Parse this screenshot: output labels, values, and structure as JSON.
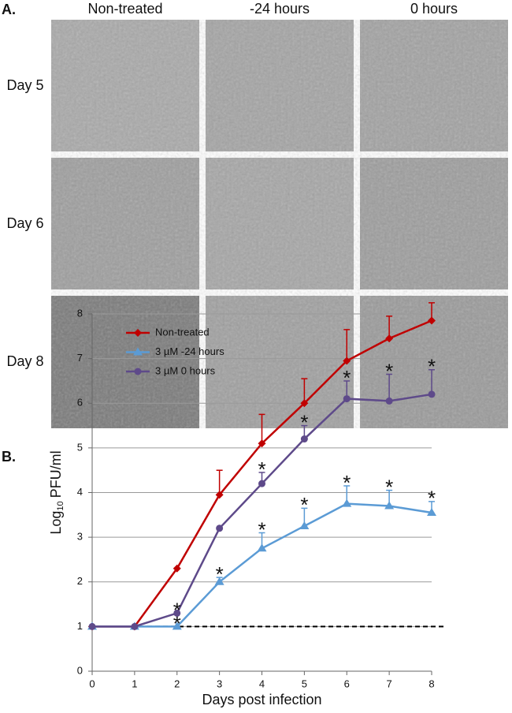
{
  "panel_a": {
    "label": "A.",
    "columns": [
      "Non-treated",
      "-24 hours",
      "0 hours"
    ],
    "rows": [
      "Day 5",
      "Day 6",
      "Day 8"
    ]
  },
  "chart_data": {
    "type": "line",
    "label": "B.",
    "x_label": "Days post infection",
    "y_label": {
      "base": "Log",
      "sub": "10",
      "rest": "PFU/ml"
    },
    "x": [
      0,
      1,
      2,
      3,
      4,
      5,
      6,
      7,
      8
    ],
    "xlim": [
      0,
      8
    ],
    "xticks": [
      0,
      1,
      2,
      3,
      4,
      5,
      6,
      7,
      8
    ],
    "ylim": [
      0,
      8
    ],
    "yticks": [
      0,
      1,
      2,
      3,
      4,
      5,
      6,
      7,
      8
    ],
    "grid": true,
    "legend": "upper left",
    "reference_line": 1,
    "annotation_text": "*",
    "series": [
      {
        "name": "Non-treated",
        "color": "#c00000",
        "marker": "diamond",
        "values": [
          1,
          1,
          2.3,
          3.95,
          5.1,
          6.0,
          6.95,
          7.45,
          7.85
        ],
        "errors": [
          0,
          0,
          0,
          0.55,
          0.65,
          0.55,
          0.7,
          0.5,
          0.4
        ]
      },
      {
        "name": "3 µM -24 hours",
        "color": "#5b9bd5",
        "marker": "triangle",
        "values": [
          1,
          1,
          1,
          2.0,
          2.75,
          3.25,
          3.75,
          3.7,
          3.55
        ],
        "errors": [
          0,
          0,
          0,
          0.1,
          0.35,
          0.4,
          0.4,
          0.35,
          0.25
        ],
        "significant": [
          false,
          false,
          true,
          true,
          true,
          true,
          true,
          true,
          true
        ]
      },
      {
        "name": "3 µM 0 hours",
        "color": "#5e4a8a",
        "marker": "circle",
        "values": [
          1,
          1,
          1.3,
          3.2,
          4.2,
          5.2,
          6.1,
          6.05,
          6.2
        ],
        "errors": [
          0,
          0,
          0,
          0,
          0.25,
          0.3,
          0.4,
          0.6,
          0.55
        ],
        "significant": [
          false,
          false,
          true,
          false,
          true,
          true,
          true,
          true,
          true
        ]
      }
    ]
  }
}
